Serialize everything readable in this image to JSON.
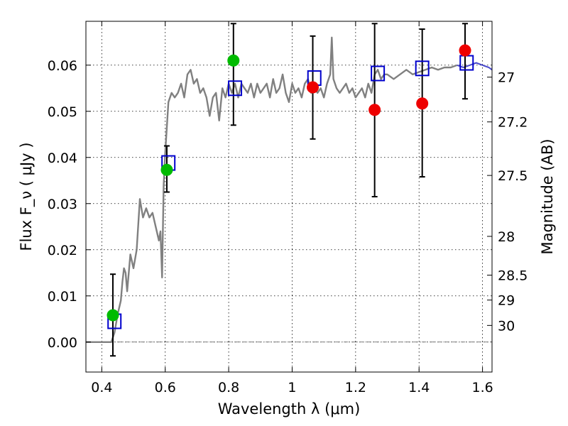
{
  "chart_data": {
    "type": "scatter",
    "xlabel": "Wavelength  λ (μm)",
    "ylabel": "Flux  F_ν  ( μJy )",
    "y2label": "Magnitude (AB)",
    "xlim": [
      0.35,
      1.63
    ],
    "ylim": [
      -0.0065,
      0.0695
    ],
    "x_ticks": [
      0.4,
      0.6,
      0.8,
      1.0,
      1.2,
      1.4,
      1.6
    ],
    "x_tick_labels": [
      "0.4",
      "0.6",
      "0.8",
      "1",
      "1.2",
      "1.4",
      "1.6"
    ],
    "y_ticks": [
      0.0,
      0.01,
      0.02,
      0.03,
      0.04,
      0.05,
      0.06
    ],
    "y_tick_labels": [
      "0.00",
      "0.01",
      "0.02",
      "0.03",
      "0.04",
      "0.05",
      "0.06"
    ],
    "mag_ticks": [
      {
        "flux": 0.0574,
        "label": "27"
      },
      {
        "flux": 0.0477,
        "label": "27.2"
      },
      {
        "flux": 0.0361,
        "label": "27.5"
      },
      {
        "flux": 0.0229,
        "label": "28"
      },
      {
        "flux": 0.0145,
        "label": "28.5"
      },
      {
        "flux": 0.0091,
        "label": "29"
      },
      {
        "flux": 0.0036,
        "label": "30"
      }
    ],
    "grid": true,
    "zero_line": true,
    "colors": {
      "sed": "#808080",
      "sed_tail": "#4a4acc",
      "model_box": "#0000cc",
      "green": "#00bb00",
      "red": "#ee0000",
      "errorbar": "#000000"
    },
    "series": [
      {
        "name": "SED model spectrum",
        "kind": "line",
        "points": [
          [
            0.35,
            0.0
          ],
          [
            0.43,
            0.0
          ],
          [
            0.44,
            0.002
          ],
          [
            0.45,
            0.006
          ],
          [
            0.46,
            0.009
          ],
          [
            0.465,
            0.013
          ],
          [
            0.47,
            0.016
          ],
          [
            0.475,
            0.015
          ],
          [
            0.48,
            0.011
          ],
          [
            0.49,
            0.019
          ],
          [
            0.5,
            0.016
          ],
          [
            0.51,
            0.02
          ],
          [
            0.52,
            0.031
          ],
          [
            0.53,
            0.027
          ],
          [
            0.54,
            0.029
          ],
          [
            0.55,
            0.027
          ],
          [
            0.56,
            0.028
          ],
          [
            0.57,
            0.025
          ],
          [
            0.58,
            0.022
          ],
          [
            0.585,
            0.024
          ],
          [
            0.59,
            0.014
          ],
          [
            0.595,
            0.034
          ],
          [
            0.6,
            0.041
          ],
          [
            0.61,
            0.052
          ],
          [
            0.62,
            0.054
          ],
          [
            0.63,
            0.053
          ],
          [
            0.64,
            0.054
          ],
          [
            0.65,
            0.056
          ],
          [
            0.66,
            0.053
          ],
          [
            0.67,
            0.058
          ],
          [
            0.68,
            0.059
          ],
          [
            0.69,
            0.056
          ],
          [
            0.7,
            0.057
          ],
          [
            0.71,
            0.054
          ],
          [
            0.72,
            0.055
          ],
          [
            0.73,
            0.053
          ],
          [
            0.74,
            0.049
          ],
          [
            0.75,
            0.053
          ],
          [
            0.76,
            0.054
          ],
          [
            0.77,
            0.048
          ],
          [
            0.78,
            0.055
          ],
          [
            0.79,
            0.053
          ],
          [
            0.8,
            0.056
          ],
          [
            0.81,
            0.054
          ],
          [
            0.82,
            0.056
          ],
          [
            0.83,
            0.053
          ],
          [
            0.84,
            0.056
          ],
          [
            0.85,
            0.055
          ],
          [
            0.86,
            0.054
          ],
          [
            0.87,
            0.056
          ],
          [
            0.88,
            0.053
          ],
          [
            0.89,
            0.056
          ],
          [
            0.9,
            0.054
          ],
          [
            0.91,
            0.055
          ],
          [
            0.92,
            0.056
          ],
          [
            0.93,
            0.053
          ],
          [
            0.94,
            0.057
          ],
          [
            0.95,
            0.054
          ],
          [
            0.96,
            0.055
          ],
          [
            0.97,
            0.058
          ],
          [
            0.98,
            0.054
          ],
          [
            0.99,
            0.052
          ],
          [
            1.0,
            0.056
          ],
          [
            1.01,
            0.054
          ],
          [
            1.02,
            0.055
          ],
          [
            1.03,
            0.053
          ],
          [
            1.04,
            0.056
          ],
          [
            1.05,
            0.057
          ],
          [
            1.06,
            0.054
          ],
          [
            1.07,
            0.055
          ],
          [
            1.08,
            0.054
          ],
          [
            1.09,
            0.055
          ],
          [
            1.1,
            0.053
          ],
          [
            1.11,
            0.056
          ],
          [
            1.12,
            0.058
          ],
          [
            1.125,
            0.066
          ],
          [
            1.13,
            0.057
          ],
          [
            1.14,
            0.055
          ],
          [
            1.15,
            0.054
          ],
          [
            1.16,
            0.055
          ],
          [
            1.17,
            0.056
          ],
          [
            1.18,
            0.054
          ],
          [
            1.19,
            0.055
          ],
          [
            1.2,
            0.053
          ],
          [
            1.21,
            0.054
          ],
          [
            1.22,
            0.055
          ],
          [
            1.23,
            0.053
          ],
          [
            1.24,
            0.056
          ],
          [
            1.25,
            0.054
          ],
          [
            1.26,
            0.058
          ],
          [
            1.27,
            0.059
          ],
          [
            1.28,
            0.057
          ],
          [
            1.29,
            0.058
          ],
          [
            1.3,
            0.058
          ],
          [
            1.32,
            0.057
          ],
          [
            1.34,
            0.058
          ],
          [
            1.36,
            0.059
          ],
          [
            1.38,
            0.058
          ],
          [
            1.4,
            0.0585
          ],
          [
            1.42,
            0.059
          ],
          [
            1.44,
            0.0595
          ],
          [
            1.46,
            0.059
          ],
          [
            1.48,
            0.0595
          ],
          [
            1.5,
            0.0595
          ],
          [
            1.52,
            0.06
          ],
          [
            1.54,
            0.0595
          ],
          [
            1.56,
            0.06
          ],
          [
            1.58,
            0.0605
          ],
          [
            1.6,
            0.06
          ],
          [
            1.62,
            0.0595
          ],
          [
            1.63,
            0.059
          ]
        ]
      },
      {
        "name": "Model photometry",
        "kind": "square",
        "x": [
          0.44,
          0.61,
          0.82,
          1.07,
          1.27,
          1.41,
          1.55
        ],
        "y": [
          0.0045,
          0.0388,
          0.055,
          0.0572,
          0.0582,
          0.0593,
          0.0605
        ]
      },
      {
        "name": "Observed (green)",
        "kind": "circle",
        "x": [
          0.435,
          0.605,
          0.815
        ],
        "y": [
          0.0058,
          0.0373,
          0.061
        ],
        "err": [
          [
            -0.003,
            0.0147
          ],
          [
            0.0325,
            0.0425
          ],
          [
            0.047,
            0.069
          ]
        ]
      },
      {
        "name": "Observed (red)",
        "kind": "circle",
        "x": [
          1.065,
          1.26,
          1.41,
          1.545
        ],
        "y": [
          0.0552,
          0.0503,
          0.0517,
          0.0632
        ],
        "err": [
          [
            0.044,
            0.0663
          ],
          [
            0.0315,
            0.069
          ],
          [
            0.0358,
            0.0678
          ],
          [
            0.0527,
            0.069
          ]
        ]
      }
    ]
  }
}
